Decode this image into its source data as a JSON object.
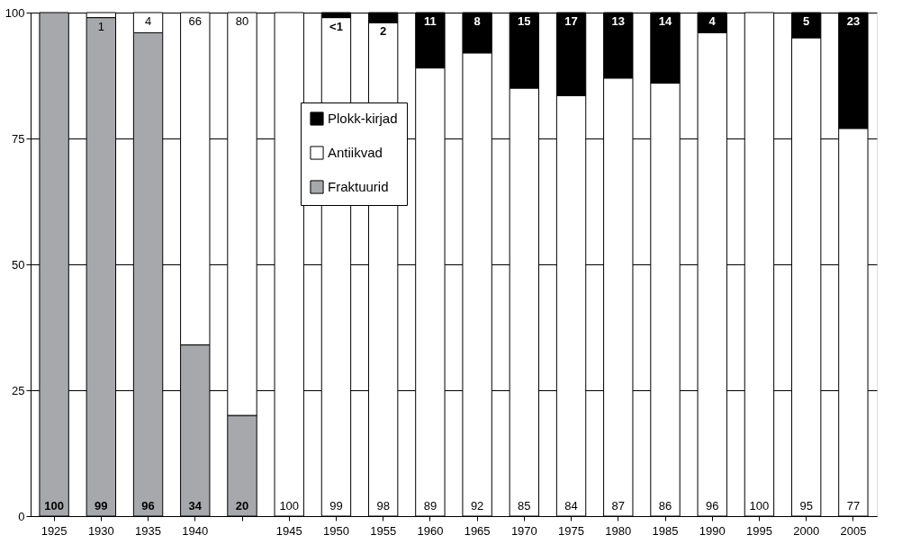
{
  "chart_data": {
    "type": "bar",
    "stacked": true,
    "categories": [
      "1925",
      "1930",
      "1935",
      "1940",
      null,
      "1945",
      "1950",
      "1955",
      "1960",
      "1965",
      "1970",
      "1975",
      "1980",
      "1985",
      "1990",
      "1995",
      "2000",
      "2005"
    ],
    "series": [
      {
        "name": "Fraktuurid",
        "color": "#a6a8ab",
        "values": [
          100,
          99,
          96,
          34,
          20,
          0,
          0,
          0,
          0,
          0,
          0,
          0,
          0,
          0,
          0,
          0,
          0,
          0
        ],
        "value_labels": [
          "100",
          "99",
          "96",
          "34",
          "20",
          null,
          null,
          null,
          null,
          null,
          null,
          null,
          null,
          null,
          null,
          null,
          null,
          null
        ]
      },
      {
        "name": "Antiikvad",
        "color": "#ffffff",
        "values": [
          0,
          1,
          4,
          66,
          80,
          100,
          99,
          98,
          89,
          92,
          85,
          83.5,
          87,
          86,
          96,
          100,
          95,
          77
        ],
        "value_labels": [
          null,
          "1",
          "4",
          "66",
          "80",
          "100",
          "99",
          "98",
          "89",
          "92",
          "85",
          "84",
          "87",
          "86",
          "96",
          "100",
          "95",
          "77"
        ]
      },
      {
        "name": "Plokk-kirjad",
        "color": "#000000",
        "values": [
          0,
          0,
          0,
          0,
          0,
          0,
          1,
          2,
          11,
          8,
          15,
          16.5,
          13,
          14,
          4,
          0,
          5,
          23
        ],
        "value_labels": [
          null,
          null,
          null,
          null,
          null,
          null,
          "<1",
          "2",
          "11",
          "8",
          "15",
          "17",
          "13",
          "14",
          "4",
          null,
          "5",
          "23"
        ]
      }
    ],
    "ylim": [
      0,
      100
    ],
    "yticks": [
      0,
      25,
      50,
      75,
      100
    ],
    "grid": "y",
    "legend": "top"
  }
}
